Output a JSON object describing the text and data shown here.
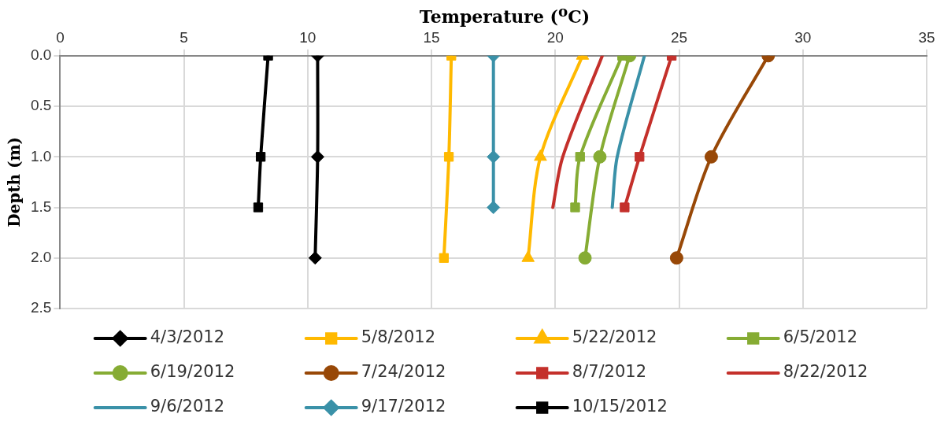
{
  "chart_data": {
    "type": "line",
    "xlabel": "Temperature ($^{o}$C)",
    "ylabel": "Depth (m)",
    "xlim": [
      0,
      35
    ],
    "xticks": [
      0,
      5,
      10,
      15,
      20,
      25,
      30,
      35
    ],
    "ylim": [
      2.5,
      0
    ],
    "yticks": [
      {
        "value": 0,
        "label": "0.0"
      },
      {
        "value": 0.5,
        "label": "0.5"
      },
      {
        "value": 1,
        "label": "1.0"
      },
      {
        "value": 1.5,
        "label": "1.5"
      },
      {
        "value": 2,
        "label": "2.0"
      },
      {
        "value": 2.5,
        "label": "2.5"
      }
    ],
    "grid": true,
    "legend": "bottom",
    "series": [
      {
        "name": "4/3/2012",
        "color": "#000000",
        "marker": "diamond",
        "x": [
          10.4,
          10.4,
          10.3
        ],
        "values": [
          0,
          1,
          2
        ]
      },
      {
        "name": "5/8/2012",
        "color": "#ffb900",
        "marker": "square",
        "x": [
          15.8,
          15.7,
          15.5
        ],
        "values": [
          0,
          1,
          2
        ]
      },
      {
        "name": "5/22/2012",
        "color": "#ffb900",
        "marker": "triangle",
        "x": [
          21.1,
          19.4,
          18.9
        ],
        "values": [
          0,
          1,
          2
        ]
      },
      {
        "name": "6/5/2012",
        "color": "#86ac34",
        "marker": "square",
        "x": [
          22.7,
          21.0,
          20.8
        ],
        "values": [
          0,
          1,
          1.5
        ]
      },
      {
        "name": "6/19/2012",
        "color": "#86ac34",
        "marker": "circle",
        "x": [
          23.0,
          21.8,
          21.2
        ],
        "values": [
          0,
          1,
          2
        ]
      },
      {
        "name": "7/24/2012",
        "color": "#984807",
        "marker": "circle",
        "x": [
          28.6,
          26.3,
          24.9
        ],
        "values": [
          0,
          1,
          2
        ]
      },
      {
        "name": "8/7/2012",
        "color": "#c4302b",
        "marker": "square",
        "x": [
          24.7,
          23.4,
          22.8
        ],
        "values": [
          0,
          1,
          1.5
        ]
      },
      {
        "name": "8/22/2012",
        "color": "#c4302b",
        "marker": "none",
        "x": [
          21.9,
          20.3,
          19.9
        ],
        "values": [
          0,
          1,
          1.5
        ]
      },
      {
        "name": "9/6/2012",
        "color": "#3a91a8",
        "marker": "none",
        "x": [
          23.6,
          22.5,
          22.3
        ],
        "values": [
          0,
          1,
          1.5
        ]
      },
      {
        "name": "9/17/2012",
        "color": "#3a91a8",
        "marker": "diamond",
        "x": [
          17.5,
          17.5,
          17.5
        ],
        "values": [
          0,
          1,
          1.5
        ]
      },
      {
        "name": "10/15/2012",
        "color": "#000000",
        "marker": "square",
        "x": [
          8.4,
          8.1,
          8.0
        ],
        "values": [
          0,
          1,
          1.5
        ]
      }
    ]
  }
}
